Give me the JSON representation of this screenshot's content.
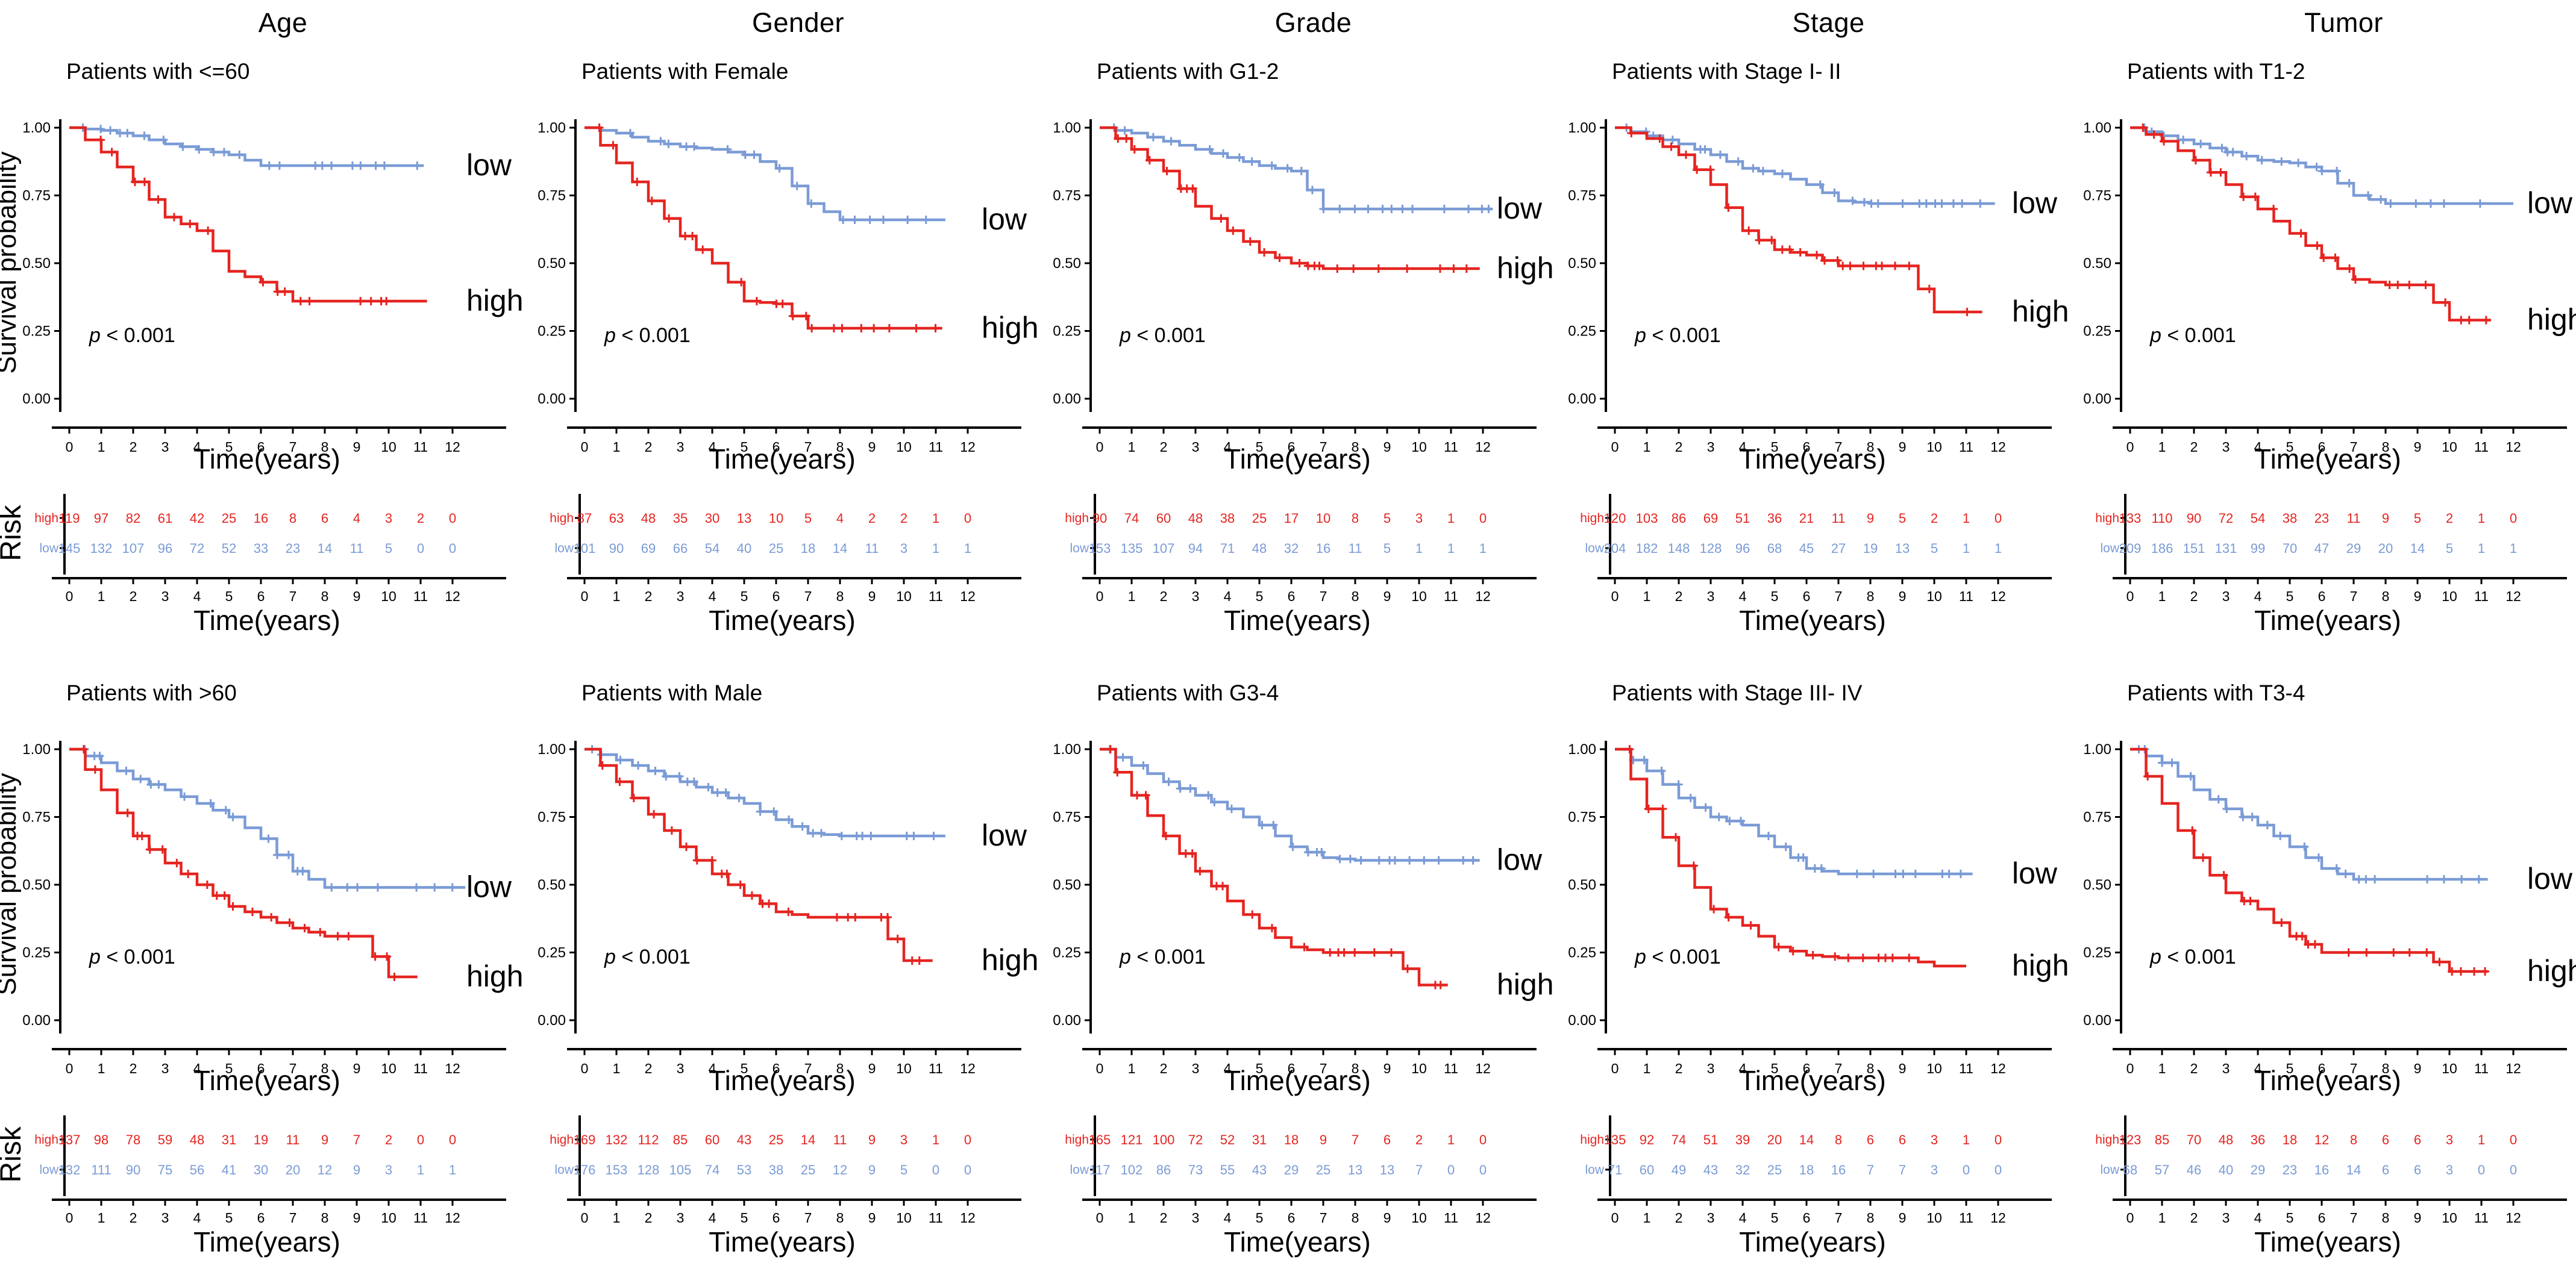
{
  "figure": {
    "columns": [
      "Age",
      "Gender",
      "Grade",
      "Stage",
      "Tumor"
    ],
    "labels": {
      "y_axis": "Survival probability",
      "x_axis": "Time(years)",
      "risk_axis": "Risk",
      "p_italic": "p",
      "p_rest": " < 0.001",
      "low": "low",
      "high": "high",
      "risk_row_high": "high",
      "risk_row_low": "low"
    },
    "y_ticks": [
      "1.00",
      "0.75",
      "0.50",
      "0.25",
      "0.00"
    ],
    "x_ticks": [
      "0",
      "1",
      "2",
      "3",
      "4",
      "5",
      "6",
      "7",
      "8",
      "9",
      "10",
      "11",
      "12"
    ],
    "colors": {
      "low": "#7A9BD6",
      "high": "#E52420",
      "axis": "#000000",
      "text": "#000000"
    }
  },
  "chart_data": [
    {
      "type": "km_step",
      "group": "Age",
      "title": "Patients with <=60",
      "p_label": "p < 0.001",
      "x_range": [
        0,
        12
      ],
      "y_range": [
        0,
        1
      ],
      "series": {
        "low": {
          "yearly": [
            1.0,
            0.99,
            0.97,
            0.94,
            0.92,
            0.9,
            0.86,
            0.86,
            0.86,
            0.86,
            0.86,
            0.86,
            0.86
          ],
          "end": 11.1
        },
        "high": {
          "yearly": [
            1.0,
            0.91,
            0.8,
            0.67,
            0.62,
            0.47,
            0.43,
            0.36,
            0.36,
            0.36,
            0.36,
            0.36,
            0.36
          ],
          "end": 11.2
        }
      },
      "risk": {
        "high": [
          119,
          97,
          82,
          61,
          42,
          25,
          16,
          8,
          6,
          4,
          3,
          2,
          0
        ],
        "low": [
          145,
          132,
          107,
          96,
          72,
          52,
          33,
          23,
          14,
          11,
          5,
          0,
          0
        ]
      }
    },
    {
      "type": "km_step",
      "group": "Gender",
      "title": "Patients with Female",
      "p_label": "p < 0.001",
      "x_range": [
        0,
        12
      ],
      "y_range": [
        0,
        1
      ],
      "series": {
        "low": {
          "yearly": [
            1.0,
            0.98,
            0.95,
            0.93,
            0.92,
            0.9,
            0.85,
            0.72,
            0.66,
            0.66,
            0.66,
            0.66,
            0.66
          ],
          "end": 11.3
        },
        "high": {
          "yearly": [
            1.0,
            0.87,
            0.73,
            0.6,
            0.5,
            0.36,
            0.35,
            0.26,
            0.26,
            0.26,
            0.26,
            0.26,
            0.26
          ],
          "end": 11.2
        }
      },
      "risk": {
        "high": [
          87,
          63,
          48,
          35,
          30,
          13,
          10,
          5,
          4,
          2,
          2,
          1,
          0
        ],
        "low": [
          101,
          90,
          69,
          66,
          54,
          40,
          25,
          18,
          14,
          11,
          3,
          1,
          1
        ]
      }
    },
    {
      "type": "km_step",
      "group": "Grade",
      "title": "Patients with G1-2",
      "p_label": "p < 0.001",
      "x_range": [
        0,
        12
      ],
      "y_range": [
        0,
        1
      ],
      "series": {
        "low": {
          "yearly": [
            1.0,
            0.98,
            0.95,
            0.92,
            0.89,
            0.86,
            0.84,
            0.7,
            0.7,
            0.7,
            0.7,
            0.7,
            0.7
          ],
          "end": 12.3
        },
        "high": {
          "yearly": [
            1.0,
            0.92,
            0.84,
            0.71,
            0.62,
            0.54,
            0.5,
            0.48,
            0.48,
            0.48,
            0.48,
            0.48,
            0.48
          ],
          "end": 11.9
        }
      },
      "risk": {
        "high": [
          90,
          74,
          60,
          48,
          38,
          25,
          17,
          10,
          8,
          5,
          3,
          1,
          0
        ],
        "low": [
          153,
          135,
          107,
          94,
          71,
          48,
          32,
          16,
          11,
          5,
          1,
          1,
          1
        ]
      }
    },
    {
      "type": "km_step",
      "group": "Stage",
      "title": "Patients with Stage I- II",
      "p_label": "p < 0.001",
      "x_range": [
        0,
        12
      ],
      "y_range": [
        0,
        1
      ],
      "series": {
        "low": {
          "yearly": [
            1.0,
            0.97,
            0.94,
            0.9,
            0.85,
            0.83,
            0.79,
            0.73,
            0.72,
            0.72,
            0.72,
            0.72,
            0.72
          ],
          "end": 11.9
        },
        "high": {
          "yearly": [
            1.0,
            0.96,
            0.9,
            0.79,
            0.62,
            0.55,
            0.53,
            0.49,
            0.49,
            0.49,
            0.32,
            0.32,
            0.32
          ],
          "end": 11.5
        }
      },
      "risk": {
        "high": [
          120,
          103,
          86,
          69,
          51,
          36,
          21,
          11,
          9,
          5,
          2,
          1,
          0
        ],
        "low": [
          204,
          182,
          148,
          128,
          96,
          68,
          45,
          27,
          19,
          13,
          5,
          1,
          1
        ]
      }
    },
    {
      "type": "km_step",
      "group": "Tumor",
      "title": "Patients with T1-2",
      "p_label": "p < 0.001",
      "x_range": [
        0,
        12
      ],
      "y_range": [
        0,
        1
      ],
      "series": {
        "low": {
          "yearly": [
            1.0,
            0.97,
            0.94,
            0.91,
            0.88,
            0.87,
            0.84,
            0.75,
            0.72,
            0.72,
            0.72,
            0.72,
            0.72
          ],
          "end": 12.0
        },
        "high": {
          "yearly": [
            1.0,
            0.95,
            0.88,
            0.79,
            0.7,
            0.61,
            0.52,
            0.44,
            0.42,
            0.42,
            0.29,
            0.29,
            0.29
          ],
          "end": 11.3
        }
      },
      "risk": {
        "high": [
          133,
          110,
          90,
          72,
          54,
          38,
          23,
          11,
          9,
          5,
          2,
          1,
          0
        ],
        "low": [
          209,
          186,
          151,
          131,
          99,
          70,
          47,
          29,
          20,
          14,
          5,
          1,
          1
        ]
      }
    },
    {
      "type": "km_step",
      "group": "",
      "title": "Patients with >60",
      "p_label": "p < 0.001",
      "x_range": [
        0,
        12
      ],
      "y_range": [
        0,
        1
      ],
      "series": {
        "low": {
          "yearly": [
            1.0,
            0.95,
            0.89,
            0.85,
            0.8,
            0.75,
            0.67,
            0.55,
            0.49,
            0.49,
            0.49,
            0.49,
            0.49
          ],
          "end": 12.4
        },
        "high": {
          "yearly": [
            1.0,
            0.85,
            0.68,
            0.58,
            0.5,
            0.42,
            0.38,
            0.34,
            0.31,
            0.31,
            0.16,
            0.16,
            0.16
          ],
          "end": 10.9
        }
      },
      "risk": {
        "high": [
          137,
          98,
          78,
          59,
          48,
          31,
          19,
          11,
          9,
          7,
          2,
          0,
          0
        ],
        "low": [
          132,
          111,
          90,
          75,
          56,
          41,
          30,
          20,
          12,
          9,
          3,
          1,
          1
        ]
      }
    },
    {
      "type": "km_step",
      "group": "",
      "title": "Patients with Male",
      "p_label": "p < 0.001",
      "x_range": [
        0,
        12
      ],
      "y_range": [
        0,
        1
      ],
      "series": {
        "low": {
          "yearly": [
            1.0,
            0.96,
            0.92,
            0.88,
            0.84,
            0.8,
            0.74,
            0.69,
            0.68,
            0.68,
            0.68,
            0.68,
            0.68
          ],
          "end": 11.3
        },
        "high": {
          "yearly": [
            1.0,
            0.88,
            0.76,
            0.64,
            0.54,
            0.46,
            0.4,
            0.38,
            0.38,
            0.38,
            0.22,
            0.22,
            0.22
          ],
          "end": 10.9
        }
      },
      "risk": {
        "high": [
          169,
          132,
          112,
          85,
          60,
          43,
          25,
          14,
          11,
          9,
          3,
          1,
          0
        ],
        "low": [
          176,
          153,
          128,
          105,
          74,
          53,
          38,
          25,
          12,
          9,
          5,
          0,
          0
        ]
      }
    },
    {
      "type": "km_step",
      "group": "",
      "title": "Patients with G3-4",
      "p_label": "p < 0.001",
      "x_range": [
        0,
        12
      ],
      "y_range": [
        0,
        1
      ],
      "series": {
        "low": {
          "yearly": [
            1.0,
            0.94,
            0.88,
            0.83,
            0.78,
            0.72,
            0.64,
            0.6,
            0.59,
            0.59,
            0.59,
            0.59,
            0.59
          ],
          "end": 11.9
        },
        "high": {
          "yearly": [
            1.0,
            0.83,
            0.68,
            0.55,
            0.44,
            0.34,
            0.27,
            0.25,
            0.25,
            0.25,
            0.13,
            0.13,
            0.13
          ],
          "end": 10.9
        }
      },
      "risk": {
        "high": [
          165,
          121,
          100,
          72,
          52,
          31,
          18,
          9,
          7,
          6,
          2,
          1,
          0
        ],
        "low": [
          117,
          102,
          86,
          73,
          55,
          43,
          29,
          25,
          13,
          13,
          7,
          0,
          0
        ]
      }
    },
    {
      "type": "km_step",
      "group": "",
      "title": "Patients with Stage III- IV",
      "p_label": "p < 0.001",
      "x_range": [
        0,
        12
      ],
      "y_range": [
        0,
        1
      ],
      "series": {
        "low": {
          "yearly": [
            1.0,
            0.92,
            0.82,
            0.75,
            0.72,
            0.64,
            0.56,
            0.54,
            0.54,
            0.54,
            0.54,
            0.54,
            0.54
          ],
          "end": 11.2
        },
        "high": {
          "yearly": [
            1.0,
            0.78,
            0.57,
            0.41,
            0.35,
            0.27,
            0.24,
            0.23,
            0.23,
            0.23,
            0.2,
            0.2,
            0.2
          ],
          "end": 11.0
        }
      },
      "risk": {
        "high": [
          135,
          92,
          74,
          51,
          39,
          20,
          14,
          8,
          6,
          6,
          3,
          1,
          0
        ],
        "low": [
          71,
          60,
          49,
          43,
          32,
          25,
          18,
          16,
          7,
          7,
          3,
          0,
          0
        ]
      }
    },
    {
      "type": "km_step",
      "group": "",
      "title": "Patients with T3-4",
      "p_label": "p < 0.001",
      "x_range": [
        0,
        12
      ],
      "y_range": [
        0,
        1
      ],
      "series": {
        "low": {
          "yearly": [
            1.0,
            0.95,
            0.85,
            0.78,
            0.72,
            0.64,
            0.56,
            0.52,
            0.52,
            0.52,
            0.52,
            0.52,
            0.52
          ],
          "end": 11.2
        },
        "high": {
          "yearly": [
            1.0,
            0.8,
            0.6,
            0.47,
            0.41,
            0.31,
            0.25,
            0.25,
            0.25,
            0.25,
            0.18,
            0.18,
            0.18
          ],
          "end": 11.2
        }
      },
      "risk": {
        "high": [
          123,
          85,
          70,
          48,
          36,
          18,
          12,
          8,
          6,
          6,
          3,
          1,
          0
        ],
        "low": [
          68,
          57,
          46,
          40,
          29,
          23,
          16,
          14,
          6,
          6,
          3,
          0,
          0
        ]
      }
    }
  ]
}
